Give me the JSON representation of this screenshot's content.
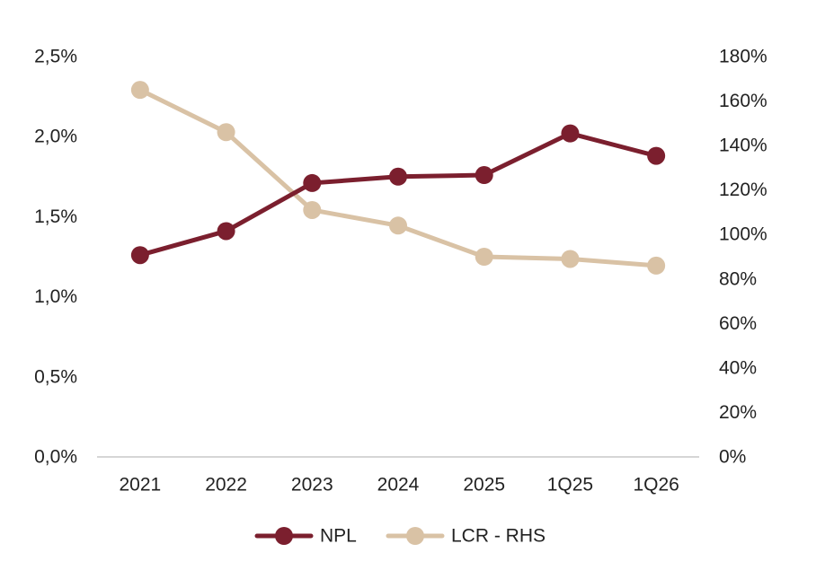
{
  "chart_data": {
    "type": "line",
    "categories": [
      "2021",
      "2022",
      "2023",
      "2024",
      "2025",
      "1Q25",
      "1Q26"
    ],
    "series": [
      {
        "name": "NPL",
        "axis": "left",
        "color": "#7b1f2e",
        "values": [
          1.26,
          1.41,
          1.71,
          1.75,
          1.76,
          2.02,
          1.88
        ]
      },
      {
        "name": "LCR - RHS",
        "axis": "right",
        "color": "#d9c2a5",
        "values": [
          165,
          146,
          111,
          104,
          90,
          89,
          86
        ]
      }
    ],
    "y_left": {
      "ylim": [
        0,
        2.5
      ],
      "ticks": [
        0,
        0.5,
        1.0,
        1.5,
        2.0,
        2.5
      ],
      "tick_labels": [
        "0,0%",
        "0,5%",
        "1,0%",
        "1,5%",
        "2,0%",
        "2,5%"
      ]
    },
    "y_right": {
      "ylim": [
        0,
        180
      ],
      "ticks": [
        0,
        20,
        40,
        60,
        80,
        100,
        120,
        140,
        160,
        180
      ],
      "tick_labels": [
        "0%",
        "20%",
        "40%",
        "60%",
        "80%",
        "100%",
        "120%",
        "140%",
        "160%",
        "180%"
      ]
    },
    "grid": false,
    "legend_placement": "bottom-center",
    "title": "",
    "xlabel": "",
    "ylabel": ""
  }
}
